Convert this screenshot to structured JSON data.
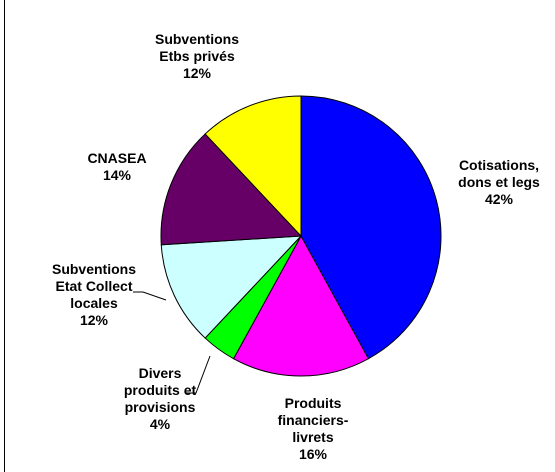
{
  "chart_data": {
    "type": "pie",
    "title": "",
    "slices": [
      {
        "label_lines": [
          "Cotisations,",
          "dons et legs"
        ],
        "value": 42,
        "value_label": "42%",
        "color": "#0000FF"
      },
      {
        "label_lines": [
          "Produits",
          "financiers-",
          "livrets"
        ],
        "value": 16,
        "value_label": "16%",
        "color": "#FF00FF"
      },
      {
        "label_lines": [
          "Divers",
          "produits et",
          "provisions"
        ],
        "value": 4,
        "value_label": "4%",
        "color": "#00FF00"
      },
      {
        "label_lines": [
          "Subventions",
          "Etat Collect",
          "locales"
        ],
        "value": 12,
        "value_label": "12%",
        "color": "#CCFFFF"
      },
      {
        "label_lines": [
          "CNASEA"
        ],
        "value": 14,
        "value_label": "14%",
        "color": "#660066"
      },
      {
        "label_lines": [
          "Subventions",
          "Etbs privés"
        ],
        "value": 12,
        "value_label": "12%",
        "color": "#FFFF00"
      }
    ],
    "legend": "none"
  }
}
